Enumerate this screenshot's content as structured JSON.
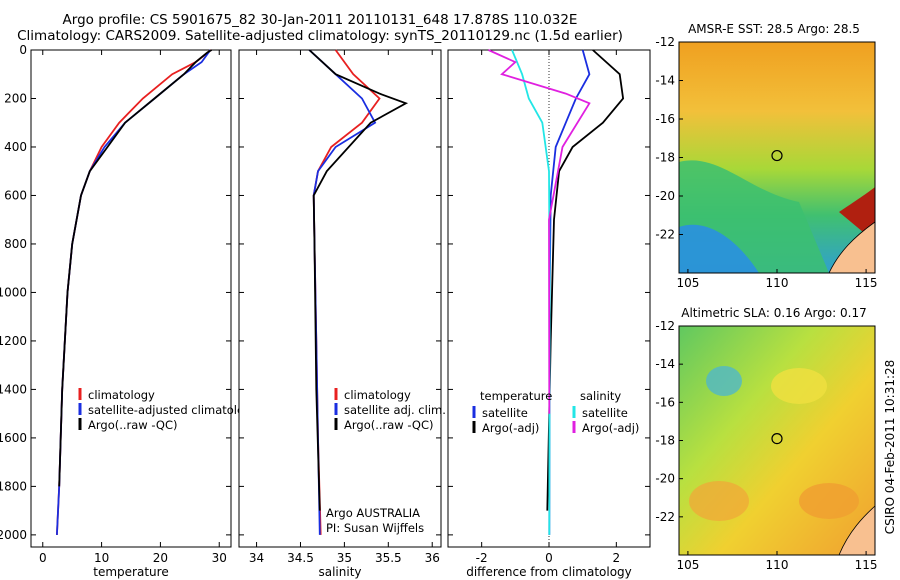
{
  "header": {
    "title_line1": "Argo profile: CS 5901675_82 30-Jan-2011 20110131_648 17.878S 110.032E",
    "title_line2": "Climatology: CARS2009. Satellite-adjusted climatology: synTS_20110129.nc (1.5d earlier)"
  },
  "footer": {
    "stamp": "CSIRO 04-Feb-2011 10:31:28"
  },
  "colors": {
    "climatology": "#e82020",
    "satellite": "#1a2ee0",
    "argo": "#000000",
    "cyan": "#22e6e6",
    "magenta": "#e020e0"
  },
  "chart_data": [
    {
      "id": "temperature",
      "type": "line",
      "xlabel": "temperature",
      "ylabel": "",
      "xlim": [
        -2,
        32
      ],
      "ylim": [
        0,
        2050
      ],
      "xticks": [
        0,
        10,
        20,
        30
      ],
      "yticks": [
        0,
        200,
        400,
        600,
        800,
        1000,
        1200,
        1400,
        1600,
        1800,
        2000
      ],
      "legend": [
        "climatology",
        "satellite-adjusted climatology",
        "Argo(..raw -QC)"
      ],
      "series": [
        {
          "name": "climatology",
          "color": "#e82020",
          "x": [
            28.6,
            26,
            22,
            17,
            13,
            10,
            8,
            6.5,
            5,
            4.2,
            3.3,
            2.8,
            2.4
          ],
          "y": [
            0,
            50,
            100,
            200,
            300,
            400,
            500,
            600,
            800,
            1000,
            1400,
            1800,
            2000
          ]
        },
        {
          "name": "satellite-adjusted climatology",
          "color": "#1a2ee0",
          "x": [
            28.5,
            27,
            24,
            19,
            14,
            10.5,
            8,
            6.5,
            5,
            4.2,
            3.3,
            2.8,
            2.4
          ],
          "y": [
            0,
            50,
            100,
            200,
            300,
            400,
            500,
            600,
            800,
            1000,
            1400,
            1800,
            2000
          ]
        },
        {
          "name": "Argo(..raw -QC)",
          "color": "#000000",
          "x": [
            28.7,
            28,
            26,
            24,
            19,
            14,
            11,
            8,
            6.5,
            5,
            4.2,
            3.3,
            2.8
          ],
          "y": [
            0,
            10,
            50,
            100,
            200,
            300,
            400,
            500,
            600,
            800,
            1000,
            1400,
            1800
          ]
        }
      ]
    },
    {
      "id": "salinity",
      "type": "line",
      "xlabel": "salinity",
      "ylabel": "",
      "xlim": [
        33.8,
        36.1
      ],
      "ylim": [
        0,
        2050
      ],
      "xticks": [
        34,
        34.5,
        35,
        35.5,
        36
      ],
      "legend": [
        "climatology",
        "satellite adj. clim.",
        "Argo(..raw -QC)"
      ],
      "annotations": [
        "Argo AUSTRALIA",
        "PI: Susan Wijffels"
      ],
      "series": [
        {
          "name": "climatology",
          "color": "#e82020",
          "x": [
            34.9,
            35.1,
            35.4,
            35.2,
            34.85,
            34.7,
            34.65,
            34.66,
            34.68,
            34.7,
            34.73
          ],
          "y": [
            0,
            100,
            200,
            300,
            400,
            500,
            600,
            800,
            1200,
            1600,
            2000
          ]
        },
        {
          "name": "satellite adj. clim.",
          "color": "#1a2ee0",
          "x": [
            34.6,
            34.9,
            35.2,
            35.35,
            34.9,
            34.7,
            34.65,
            34.66,
            34.68,
            34.7,
            34.72
          ],
          "y": [
            0,
            100,
            200,
            300,
            400,
            500,
            600,
            800,
            1200,
            1600,
            2000
          ]
        },
        {
          "name": "Argo(..raw -QC)",
          "color": "#000000",
          "x": [
            34.6,
            34.9,
            35.4,
            35.7,
            35.3,
            34.8,
            34.65,
            34.66,
            34.68,
            34.72
          ],
          "y": [
            0,
            100,
            180,
            220,
            300,
            500,
            600,
            800,
            1400,
            1900
          ]
        }
      ]
    },
    {
      "id": "difference",
      "type": "line",
      "xlabel": "difference from climatology",
      "ylabel": "",
      "xlim": [
        -3,
        3
      ],
      "ylim": [
        0,
        2050
      ],
      "xticks": [
        -2,
        0,
        2
      ],
      "legend_groups": [
        "temperature",
        "salinity"
      ],
      "legend": [
        "satellite",
        "Argo(-adj)",
        "satellite",
        "Argo(-adj)"
      ],
      "series": [
        {
          "name": "temperature satellite",
          "color": "#1a2ee0",
          "x": [
            1,
            1.2,
            0.8,
            0.5,
            0.2,
            0.05,
            0.02,
            0.01
          ],
          "y": [
            0,
            100,
            200,
            300,
            400,
            600,
            1000,
            2000
          ]
        },
        {
          "name": "temperature Argo(-adj)",
          "color": "#000000",
          "x": [
            1.3,
            2.1,
            2.2,
            1.6,
            0.7,
            0.3,
            0.15,
            0.05,
            -0.05
          ],
          "y": [
            0,
            100,
            200,
            300,
            400,
            500,
            700,
            1200,
            1900
          ]
        },
        {
          "name": "salinity satellite",
          "color": "#22e6e6",
          "x": [
            -1.1,
            -0.8,
            -0.6,
            -0.2,
            0,
            0.02,
            0.01
          ],
          "y": [
            0,
            100,
            200,
            300,
            500,
            1000,
            2000
          ]
        },
        {
          "name": "salinity Argo(-adj)",
          "color": "#e020e0",
          "x": [
            -1.8,
            -1,
            -1.4,
            0.5,
            1.2,
            0.4,
            0,
            0.01
          ],
          "y": [
            0,
            50,
            100,
            180,
            220,
            400,
            700,
            1500
          ]
        }
      ]
    },
    {
      "id": "sst_map",
      "type": "heatmap",
      "title": "AMSR-E SST: 28.5 Argo: 28.5",
      "xticks": [
        105,
        110,
        115
      ],
      "yticks": [
        -12,
        -14,
        -16,
        -18,
        -20,
        -22
      ],
      "xlim": [
        104.5,
        115.5
      ],
      "ylim": [
        -24,
        -12
      ],
      "marker": [
        110,
        -17.9
      ]
    },
    {
      "id": "sla_map",
      "type": "heatmap",
      "title": "Altimetric SLA: 0.16 Argo: 0.17",
      "xticks": [
        105,
        110,
        115
      ],
      "yticks": [
        -12,
        -14,
        -16,
        -18,
        -20,
        -22
      ],
      "xlim": [
        104.5,
        115.5
      ],
      "ylim": [
        -24,
        -12
      ],
      "marker": [
        110,
        -17.9
      ]
    }
  ]
}
